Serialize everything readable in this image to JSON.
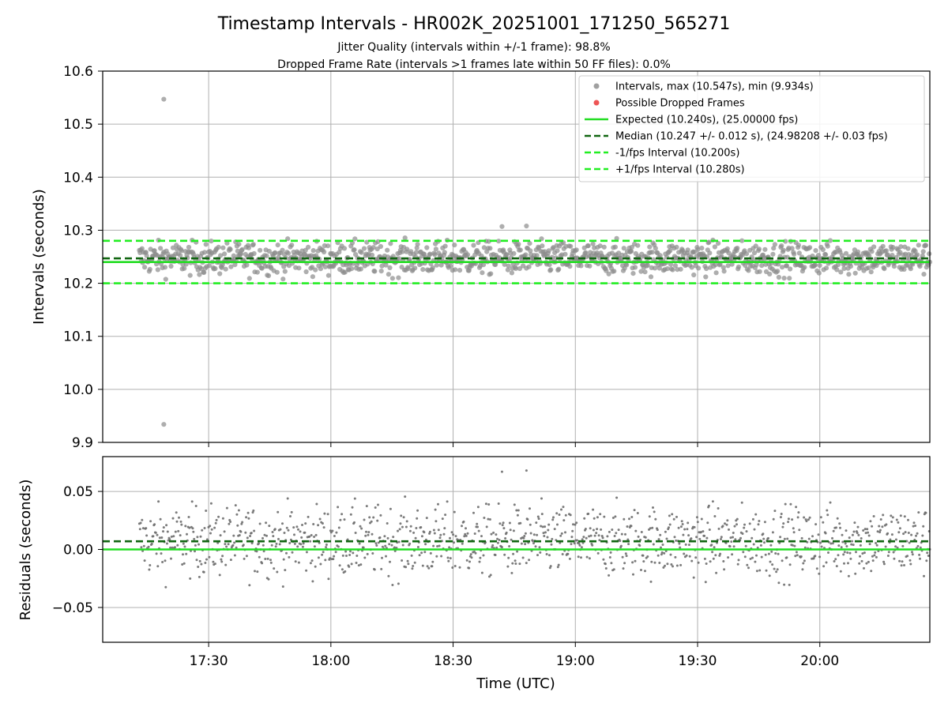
{
  "chart_data": {
    "type": "scatter",
    "title": "Timestamp Intervals - HR002K_20251001_171250_565271",
    "subtitle_lines": [
      "Jitter Quality (intervals within +/-1 frame): 98.8%",
      "Dropped Frame Rate (intervals >1 frames late within 50 FF files): 0.0%"
    ],
    "xlabel": "Time (UTC)",
    "x_ticks": [
      "17:30",
      "18:00",
      "18:30",
      "19:00",
      "19:30",
      "20:00"
    ],
    "x_range": [
      "17:04",
      "20:27"
    ],
    "grid": true,
    "legend_position": "top-right",
    "panels": [
      {
        "name": "intervals",
        "ylabel": "Intervals (seconds)",
        "ylim": [
          9.9,
          10.6
        ],
        "y_ticks": [
          "9.9",
          "10.0",
          "10.1",
          "10.2",
          "10.3",
          "10.4",
          "10.5",
          "10.6"
        ],
        "scatter_range": [
          10.2,
          10.29
        ],
        "scatter_center": 10.247,
        "outliers": [
          {
            "t": "17:19",
            "y": 10.547
          },
          {
            "t": "17:19",
            "y": 9.934
          },
          {
            "t": "18:42",
            "y": 10.307
          },
          {
            "t": "18:48",
            "y": 10.308
          }
        ],
        "lines": [
          {
            "key": "expected",
            "y": 10.24,
            "color": "#22dd22",
            "style": "solid"
          },
          {
            "key": "median",
            "y": 10.247,
            "color": "#116611",
            "style": "dashed"
          },
          {
            "key": "minus_fps",
            "y": 10.2,
            "color": "#22ee22",
            "style": "dashed"
          },
          {
            "key": "plus_fps",
            "y": 10.28,
            "color": "#22ee22",
            "style": "dashed"
          }
        ]
      },
      {
        "name": "residuals",
        "ylabel": "Residuals (seconds)",
        "ylim": [
          -0.08,
          0.08
        ],
        "y_ticks": [
          "−0.05",
          "0.00",
          "0.05"
        ],
        "scatter_range": [
          -0.04,
          0.05
        ],
        "scatter_center": 0.007,
        "outliers": [
          {
            "t": "18:42",
            "y": 0.067
          },
          {
            "t": "18:48",
            "y": 0.068
          }
        ],
        "lines": [
          {
            "key": "expected",
            "y": 0.0,
            "color": "#22dd22",
            "style": "solid"
          },
          {
            "key": "median",
            "y": 0.007,
            "color": "#116611",
            "style": "dashed"
          }
        ]
      }
    ],
    "legend": [
      {
        "kind": "marker",
        "color": "#a0a0a0",
        "label": "Intervals, max (10.547s), min (9.934s)"
      },
      {
        "kind": "marker",
        "color": "#ee5555",
        "label": "Possible Dropped Frames"
      },
      {
        "kind": "line",
        "color": "#22dd22",
        "style": "solid",
        "label": "Expected (10.240s), (25.00000 fps)"
      },
      {
        "kind": "line",
        "color": "#116611",
        "style": "dashed",
        "label": "Median (10.247 +/- 0.012 s), (24.98208 +/- 0.03 fps)"
      },
      {
        "kind": "line",
        "color": "#22ee22",
        "style": "dashed",
        "label": "-1/fps Interval (10.200s)"
      },
      {
        "kind": "line",
        "color": "#22ee22",
        "style": "dashed",
        "label": "+1/fps Interval (10.280s)"
      }
    ],
    "point_colors": {
      "intervals": "#8c8c8c",
      "residuals": "#6e6e6e"
    }
  }
}
